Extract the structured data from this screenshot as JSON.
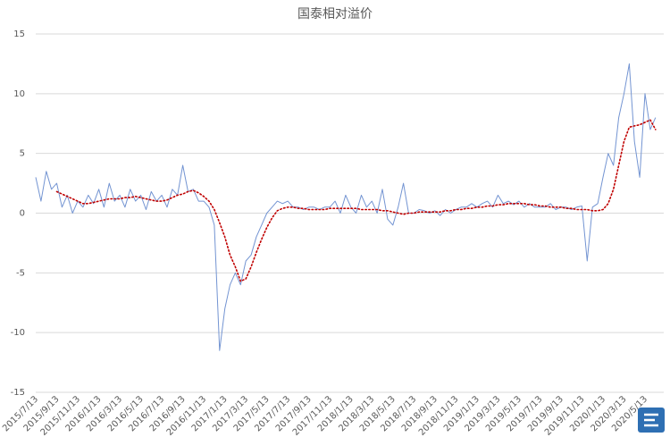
{
  "chart_data": {
    "type": "line",
    "title": "国泰相对溢价",
    "categories": [
      "2015/7/13",
      null,
      null,
      null,
      "2015/9/13",
      null,
      null,
      null,
      "2015/11/13",
      null,
      null,
      null,
      "2016/1/13",
      null,
      null,
      null,
      "2016/3/13",
      null,
      null,
      null,
      "2016/5/13",
      null,
      null,
      null,
      "2016/7/13",
      null,
      null,
      null,
      "2016/9/13",
      null,
      null,
      null,
      "2016/11/13",
      null,
      null,
      null,
      "2017/1/13",
      null,
      null,
      null,
      "2017/3/13",
      null,
      null,
      null,
      "2017/5/13",
      null,
      null,
      null,
      "2017/7/13",
      null,
      null,
      null,
      "2017/9/13",
      null,
      null,
      null,
      "2017/11/13",
      null,
      null,
      null,
      "2018/1/13",
      null,
      null,
      null,
      "2018/3/13",
      null,
      null,
      null,
      "2018/5/13",
      null,
      null,
      null,
      "2018/7/13",
      null,
      null,
      null,
      "2018/9/13",
      null,
      null,
      null,
      "2018/11/13",
      null,
      null,
      null,
      "2019/1/13",
      null,
      null,
      null,
      "2019/3/13",
      null,
      null,
      null,
      "2019/5/13",
      null,
      null,
      null,
      "2019/7/13",
      null,
      null,
      null,
      "2019/9/13",
      null,
      null,
      null,
      "2019/11/13",
      null,
      null,
      null,
      "2020/1/13",
      null,
      null,
      null,
      "2020/3/13",
      null,
      null,
      null,
      "2020/5/13",
      null,
      null
    ],
    "series": [
      {
        "color": "#7394d2",
        "style": "solid",
        "values": [
          3,
          1,
          3.5,
          2,
          2.5,
          0.5,
          1.5,
          0,
          1,
          0.5,
          1.5,
          0.8,
          2,
          0.5,
          2.5,
          1,
          1.5,
          0.5,
          2,
          1,
          1.5,
          0.3,
          1.8,
          1,
          1.5,
          0.5,
          2,
          1.5,
          4,
          1.8,
          2,
          1,
          1,
          0.5,
          -1,
          -11.5,
          -8,
          -6,
          -5,
          -6,
          -4,
          -3.5,
          -2,
          -1,
          0,
          0.5,
          1,
          0.8,
          1,
          0.5,
          0.5,
          0.3,
          0.5,
          0.5,
          0.3,
          0.5,
          0.5,
          1,
          0,
          1.5,
          0.5,
          0,
          1.5,
          0.5,
          1,
          0,
          2,
          -0.5,
          -1,
          0.5,
          2.5,
          0,
          0,
          0.3,
          0.2,
          0,
          0.2,
          -0.2,
          0.3,
          0,
          0.3,
          0.5,
          0.5,
          0.8,
          0.5,
          0.8,
          1,
          0.5,
          1.5,
          0.8,
          1,
          0.7,
          1,
          0.5,
          0.8,
          0.5,
          0.5,
          0.5,
          0.8,
          0.3,
          0.5,
          0.5,
          0.3,
          0.5,
          0.6,
          -4,
          0.5,
          0.8,
          3,
          5,
          4,
          8,
          10,
          12.5,
          6,
          3,
          10,
          7,
          8
        ]
      },
      {
        "color": "#c00000",
        "style": "dotted",
        "values": [
          null,
          null,
          null,
          null,
          1.8,
          1.6,
          1.4,
          1.2,
          1.0,
          0.8,
          0.8,
          0.9,
          1.0,
          1.1,
          1.2,
          1.2,
          1.2,
          1.3,
          1.3,
          1.4,
          1.3,
          1.2,
          1.1,
          1.0,
          1.0,
          1.1,
          1.3,
          1.5,
          1.6,
          1.8,
          1.9,
          1.7,
          1.4,
          1.0,
          0.3,
          -0.8,
          -2,
          -3.5,
          -4.5,
          -5.7,
          -5.5,
          -4.5,
          -3.3,
          -2.2,
          -1.2,
          -0.4,
          0.2,
          0.4,
          0.5,
          0.5,
          0.4,
          0.4,
          0.3,
          0.3,
          0.3,
          0.3,
          0.4,
          0.4,
          0.4,
          0.4,
          0.4,
          0.4,
          0.3,
          0.3,
          0.3,
          0.3,
          0.2,
          0.2,
          0.1,
          0,
          -0.1,
          0,
          0,
          0.1,
          0.1,
          0.1,
          0.1,
          0.1,
          0.2,
          0.2,
          0.3,
          0.3,
          0.4,
          0.4,
          0.5,
          0.5,
          0.6,
          0.6,
          0.7,
          0.7,
          0.8,
          0.8,
          0.8,
          0.8,
          0.7,
          0.7,
          0.6,
          0.6,
          0.5,
          0.5,
          0.5,
          0.4,
          0.4,
          0.3,
          0.3,
          0.3,
          0.2,
          0.2,
          0.3,
          0.8,
          2,
          4,
          6,
          7.2,
          7.3,
          7.4,
          7.6,
          7.8,
          7.0
        ]
      }
    ],
    "ylim": [
      -15,
      15
    ],
    "yticks": [
      -15,
      -10,
      -5,
      0,
      5,
      10,
      15
    ],
    "grid": true
  }
}
